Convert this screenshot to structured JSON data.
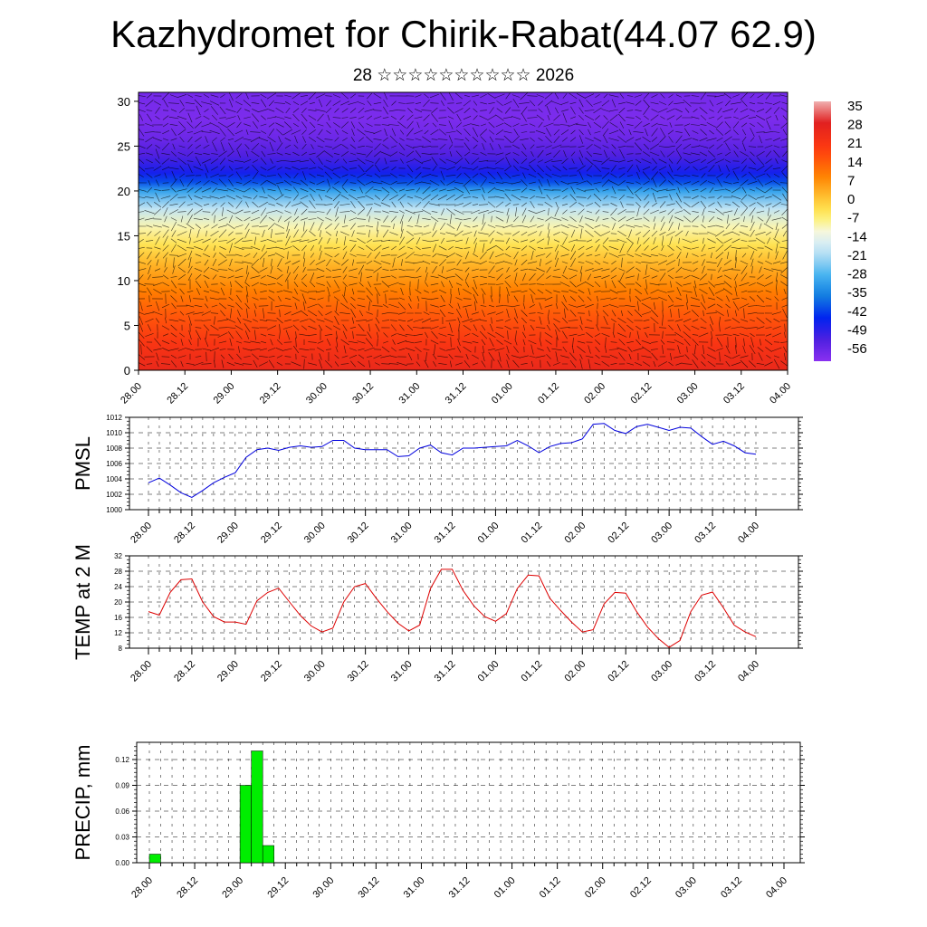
{
  "header": {
    "title": "Kazhydromet for Chirik-Rabat(44.07 62.9)",
    "subtitle": "28 ☆☆☆☆☆☆☆☆☆☆ 2026"
  },
  "colors": {
    "pmsl_line": "#0000dd",
    "temp_line": "#dd0000",
    "precip_bar": "#00ee00",
    "vector_color": "#000000"
  },
  "chart_data": [
    {
      "type": "heatmap",
      "name": "vertical-cross-section",
      "y_ticks": [
        0,
        5,
        10,
        15,
        20,
        25,
        30
      ],
      "ylim": [
        0,
        31
      ],
      "x_ticks": [
        "28.00",
        "28.12",
        "29.00",
        "29.12",
        "30.00",
        "30.12",
        "31.00",
        "31.12",
        "01.00",
        "01.12",
        "02.00",
        "02.12",
        "03.00",
        "03.12",
        "04.00"
      ],
      "colorbar_labels": [
        "35",
        "28",
        "21",
        "14",
        "7",
        "0",
        "-7",
        "-14",
        "-21",
        "-28",
        "-35",
        "-42",
        "-49",
        "-56"
      ],
      "colorbar_range": [
        -60,
        38
      ],
      "colorbar_stops": [
        {
          "v": 38,
          "c": "#f0b0b0"
        },
        {
          "v": 30,
          "c": "#e02020"
        },
        {
          "v": 20,
          "c": "#ff3a10"
        },
        {
          "v": 10,
          "c": "#ff8000"
        },
        {
          "v": 2,
          "c": "#ffc030"
        },
        {
          "v": -5,
          "c": "#fff060"
        },
        {
          "v": -12,
          "c": "#f4f8f0"
        },
        {
          "v": -20,
          "c": "#b0ddf4"
        },
        {
          "v": -28,
          "c": "#40b0f0"
        },
        {
          "v": -36,
          "c": "#1078e0"
        },
        {
          "v": -44,
          "c": "#0020f0"
        },
        {
          "v": -52,
          "c": "#5020e0"
        },
        {
          "v": -60,
          "c": "#8a30f0"
        }
      ],
      "vertical_profile": [
        {
          "h": 0,
          "t": 27
        },
        {
          "h": 3,
          "t": 22
        },
        {
          "h": 6,
          "t": 16
        },
        {
          "h": 9,
          "t": 10
        },
        {
          "h": 12,
          "t": 3
        },
        {
          "h": 14,
          "t": -3
        },
        {
          "h": 16,
          "t": -9
        },
        {
          "h": 18,
          "t": -18
        },
        {
          "h": 20,
          "t": -30
        },
        {
          "h": 21,
          "t": -40
        },
        {
          "h": 22,
          "t": -46
        },
        {
          "h": 24,
          "t": -52
        },
        {
          "h": 26,
          "t": -56
        },
        {
          "h": 28,
          "t": -58
        },
        {
          "h": 31,
          "t": -57
        }
      ]
    },
    {
      "type": "line",
      "name": "pmsl",
      "ylabel": "PMSL",
      "ylim": [
        1000,
        1012
      ],
      "y_ticks": [
        1000,
        1002,
        1004,
        1006,
        1008,
        1010,
        1012
      ],
      "x_ticks": [
        "28.00",
        "28.12",
        "29.00",
        "29.12",
        "30.00",
        "30.12",
        "31.00",
        "31.12",
        "01.00",
        "01.12",
        "02.00",
        "02.12",
        "03.00",
        "03.12",
        "04.00"
      ],
      "series": [
        {
          "values": [
            1003.5,
            1004.1,
            1003.2,
            1002.2,
            1001.6,
            1002.5,
            1003.5,
            1004.2,
            1004.8,
            1006.8,
            1007.8,
            1008.0,
            1007.7,
            1008.1,
            1008.3,
            1008.1,
            1008.2,
            1009.0,
            1009.0,
            1008.0,
            1007.8,
            1007.8,
            1007.8,
            1006.9,
            1007.0,
            1008.0,
            1008.4,
            1007.4,
            1007.1,
            1008.0,
            1008.0,
            1008.1,
            1008.2,
            1008.3,
            1009.0,
            1008.3,
            1007.4,
            1008.2,
            1008.6,
            1008.7,
            1009.2,
            1011.1,
            1011.2,
            1010.3,
            1009.9,
            1010.8,
            1011.1,
            1010.7,
            1010.3,
            1010.7,
            1010.6,
            1009.5,
            1008.5,
            1008.9,
            1008.3,
            1007.4,
            1007.2
          ]
        }
      ]
    },
    {
      "type": "line",
      "name": "temp2m",
      "ylabel": "TEMP at 2 M",
      "ylim": [
        8,
        32
      ],
      "y_ticks": [
        8,
        12,
        16,
        20,
        24,
        28,
        32
      ],
      "x_ticks": [
        "28.00",
        "28.12",
        "29.00",
        "29.12",
        "30.00",
        "30.12",
        "31.00",
        "31.12",
        "01.00",
        "01.12",
        "02.00",
        "02.12",
        "03.00",
        "03.12",
        "04.00"
      ],
      "series": [
        {
          "values": [
            17.5,
            16.6,
            22.5,
            25.8,
            26.0,
            20.0,
            16.2,
            14.8,
            14.8,
            14.2,
            20.3,
            22.5,
            23.6,
            20.0,
            16.5,
            13.8,
            12.2,
            13.2,
            20.0,
            24.0,
            24.8,
            21.0,
            17.5,
            14.5,
            12.5,
            14.0,
            23.5,
            28.5,
            28.5,
            23.0,
            19.0,
            16.2,
            15.0,
            17.0,
            23.5,
            27.0,
            26.8,
            21.0,
            17.8,
            14.8,
            12.2,
            12.8,
            19.5,
            22.5,
            22.3,
            17.5,
            13.5,
            10.5,
            8.2,
            10.0,
            17.5,
            21.8,
            22.6,
            18.5,
            14.0,
            12.2,
            11.0
          ]
        }
      ]
    },
    {
      "type": "bar",
      "name": "precip",
      "ylabel": "PRECIP, mm",
      "ylim": [
        0,
        0.14
      ],
      "y_ticks": [
        "0.00",
        "0.03",
        "0.06",
        "0.09",
        "0.12"
      ],
      "x_ticks": [
        "28.00",
        "28.12",
        "29.00",
        "29.12",
        "30.00",
        "30.12",
        "31.00",
        "31.12",
        "01.00",
        "01.12",
        "02.00",
        "02.12",
        "03.00",
        "03.12",
        "04.00"
      ],
      "bars": [
        {
          "t": 0,
          "value": 0.01
        },
        {
          "t": 8,
          "value": 0.09
        },
        {
          "t": 9,
          "value": 0.13
        },
        {
          "t": 10,
          "value": 0.02
        }
      ]
    }
  ]
}
